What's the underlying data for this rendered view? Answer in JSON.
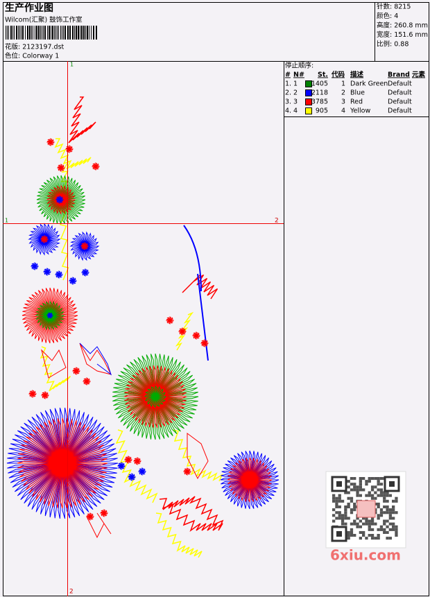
{
  "header": {
    "title": "生产作业图",
    "studio": "Wilcom(汇聚) 鼓饰工作室",
    "design": "花版: 2123197.dst",
    "colorway": "色位: Colorway 1"
  },
  "stats": [
    "针数: 8215",
    "颜色: 4",
    "高度: 260.8 mm",
    "宽度: 151.6 mm",
    "比例: 0.88"
  ],
  "stop_sequence": {
    "title": "停止顺序:",
    "columns": [
      "#",
      "N#",
      "St.",
      "代码",
      "描述",
      "Brand",
      "元素"
    ],
    "rows": [
      {
        "index": "1.",
        "n": "1",
        "color": "#008000",
        "stitches": "1405",
        "code": "1",
        "description": "Dark Green",
        "brand": "Default"
      },
      {
        "index": "2.",
        "n": "2",
        "color": "#0000ff",
        "stitches": "2118",
        "code": "2",
        "description": "Blue",
        "brand": "Default"
      },
      {
        "index": "3.",
        "n": "3",
        "color": "#ff0000",
        "stitches": "3785",
        "code": "3",
        "description": "Red",
        "brand": "Default"
      },
      {
        "index": "4.",
        "n": "4",
        "color": "#ffff00",
        "stitches": "905",
        "code": "4",
        "description": "Yellow",
        "brand": "Default"
      }
    ]
  },
  "crosshair": {
    "top": "1",
    "left": "1",
    "right": "2",
    "bottom": "2"
  },
  "watermark": "6xiu.com"
}
